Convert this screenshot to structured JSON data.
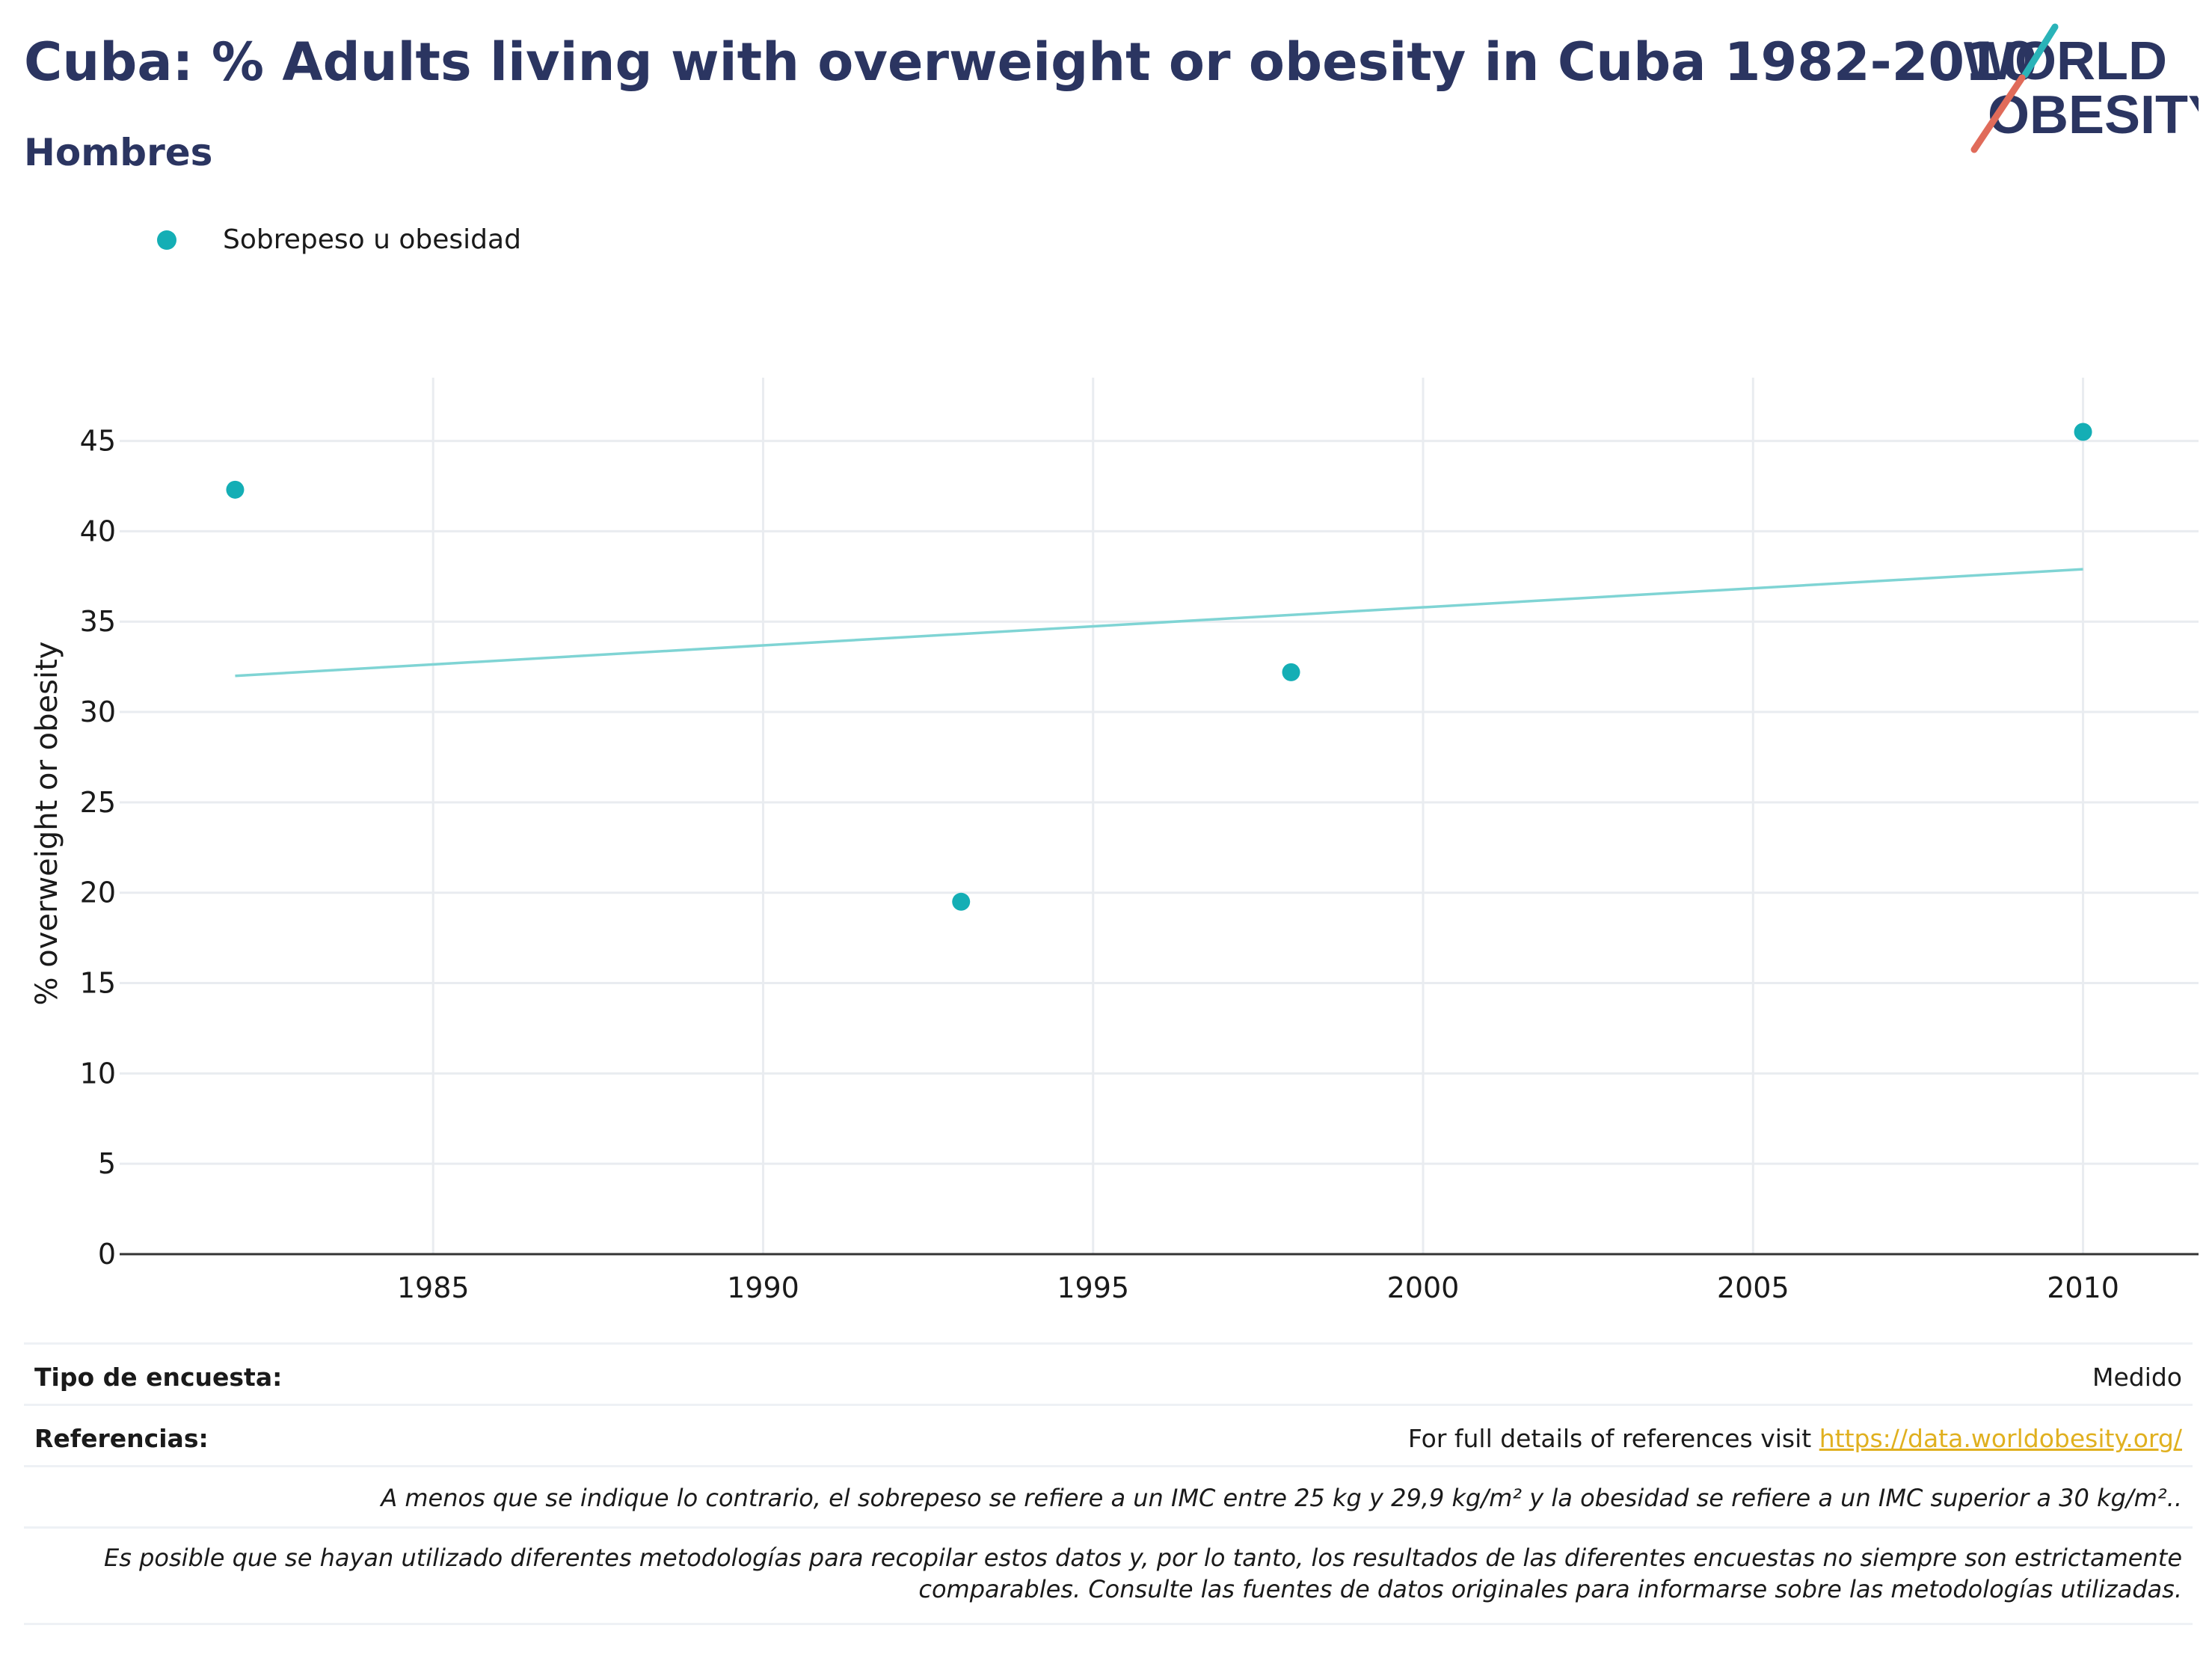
{
  "header": {
    "title": "Cuba: % Adults living with overweight or obesity in Cuba 1982-2010",
    "subtitle": "Hombres",
    "logo_line1": "WORLD",
    "logo_line2": "OBESITY"
  },
  "colors": {
    "series": "#14aeb5",
    "trend": "#7fd4d4",
    "title": "#2b3561",
    "grid": "#e9ecf0",
    "logo_teal": "#2ab3b8",
    "logo_red": "#e06b5a",
    "link": "#e0b01f"
  },
  "chart_data": {
    "type": "scatter",
    "series": [
      {
        "name": "Sobrepeso u obesidad",
        "x": [
          1982,
          1993,
          1998,
          2010
        ],
        "y": [
          42.3,
          19.5,
          32.2,
          45.5
        ]
      }
    ],
    "trendline": {
      "x": [
        1982,
        2010
      ],
      "y": [
        32.0,
        37.9
      ]
    },
    "ylabel": "% overweight or obesity",
    "xlim": [
      1980.25,
      2011.75
    ],
    "ylim": [
      0,
      48.5
    ],
    "xticks": [
      1985,
      1990,
      1995,
      2000,
      2005,
      2010
    ],
    "yticks": [
      0,
      5,
      10,
      15,
      20,
      25,
      30,
      35,
      40,
      45
    ],
    "grid": true,
    "legend_position": "top-left"
  },
  "footer": {
    "survey_type_label": "Tipo de encuesta:",
    "survey_type_value": "Medido",
    "references_label": "Referencias:",
    "references_text": "For full details of references visit ",
    "references_link": "https://data.worldobesity.org/",
    "note1": "A menos que se indique lo contrario, el sobrepeso se refiere a un IMC entre 25 kg y 29,9 kg/m² y la obesidad se refiere a un IMC superior a 30 kg/m²..",
    "note2_line1": "Es posible que se hayan utilizado diferentes metodologías para recopilar estos datos y, por lo tanto, los resultados de las diferentes encuestas no siempre son estrictamente",
    "note2_line2": "comparables. Consulte las fuentes de datos originales para informarse sobre las metodologías utilizadas."
  }
}
